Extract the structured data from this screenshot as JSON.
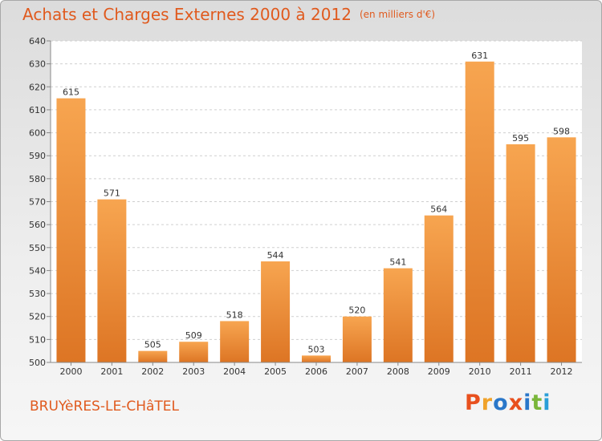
{
  "header": {
    "title": "Achats et Charges Externes 2000 à 2012",
    "unit": "(en milliers d'€)"
  },
  "footer": {
    "commune": "BRUYèRES-LE-CHâTEL",
    "logo": "Proxiti"
  },
  "colors": {
    "accent": "#e05a1e",
    "bar_light": "#f7a550",
    "bar_dark": "#dd7524",
    "logo_letters": [
      "#e8501e",
      "#f0a22a",
      "#2a77c9",
      "#e8501e",
      "#2a77c9",
      "#7ab63a",
      "#2a9fd8"
    ]
  },
  "chart_data": {
    "type": "bar",
    "title": "Achats et Charges Externes 2000 à 2012",
    "subtitle": "(en milliers d'€)",
    "xlabel": "",
    "ylabel": "",
    "categories": [
      "2000",
      "2001",
      "2002",
      "2003",
      "2004",
      "2005",
      "2006",
      "2007",
      "2008",
      "2009",
      "2010",
      "2011",
      "2012"
    ],
    "values": [
      615,
      571,
      505,
      509,
      518,
      544,
      503,
      520,
      541,
      564,
      631,
      595,
      598
    ],
    "ylim": [
      500,
      640
    ],
    "yticks": [
      500,
      510,
      520,
      530,
      540,
      550,
      560,
      570,
      580,
      590,
      600,
      610,
      620,
      630,
      640
    ],
    "grid": true,
    "data_labels": true,
    "legend": "none"
  }
}
